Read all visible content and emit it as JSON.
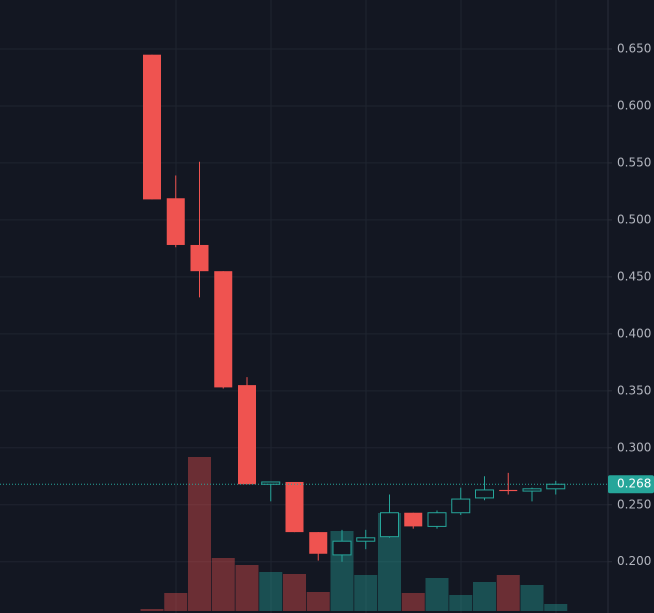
{
  "chart_data": {
    "type": "candlestick",
    "open": [
      0.645,
      0.519,
      0.478,
      0.455,
      0.355,
      0.268,
      0.27,
      0.226,
      0.206,
      0.218,
      0.222,
      0.243,
      0.231,
      0.243,
      0.256,
      0.263,
      0.262,
      0.264
    ],
    "high": [
      0.645,
      0.539,
      0.551,
      0.455,
      0.362,
      0.27,
      0.27,
      0.226,
      0.228,
      0.228,
      0.259,
      0.243,
      0.245,
      0.265,
      0.275,
      0.278,
      0.265,
      0.271
    ],
    "low": [
      0.518,
      0.476,
      0.432,
      0.352,
      0.268,
      0.253,
      0.226,
      0.201,
      0.2,
      0.211,
      0.221,
      0.229,
      0.229,
      0.241,
      0.254,
      0.259,
      0.253,
      0.259
    ],
    "close": [
      0.518,
      0.478,
      0.455,
      0.353,
      0.268,
      0.27,
      0.226,
      0.207,
      0.218,
      0.221,
      0.243,
      0.231,
      0.243,
      0.255,
      0.263,
      0.262,
      0.264,
      0.268
    ],
    "volume": [
      2,
      18,
      154,
      53,
      46,
      39,
      37,
      19,
      80,
      36,
      98,
      18,
      33,
      16,
      29,
      36,
      26,
      7
    ],
    "ylim": [
      0.155,
      0.693
    ],
    "yticks": [
      {
        "value": 0.2,
        "label": "0.200"
      },
      {
        "value": 0.25,
        "label": "0.250"
      },
      {
        "value": 0.3,
        "label": "0.300"
      },
      {
        "value": 0.35,
        "label": "0.350"
      },
      {
        "value": 0.4,
        "label": "0.400"
      },
      {
        "value": 0.45,
        "label": "0.450"
      },
      {
        "value": 0.5,
        "label": "0.500"
      },
      {
        "value": 0.55,
        "label": "0.550"
      },
      {
        "value": 0.6,
        "label": "0.600"
      },
      {
        "value": 0.65,
        "label": "0.650"
      }
    ],
    "last_price": 0.268,
    "up_color": "#26a69a",
    "down_color": "#ef5350",
    "grid": true
  }
}
